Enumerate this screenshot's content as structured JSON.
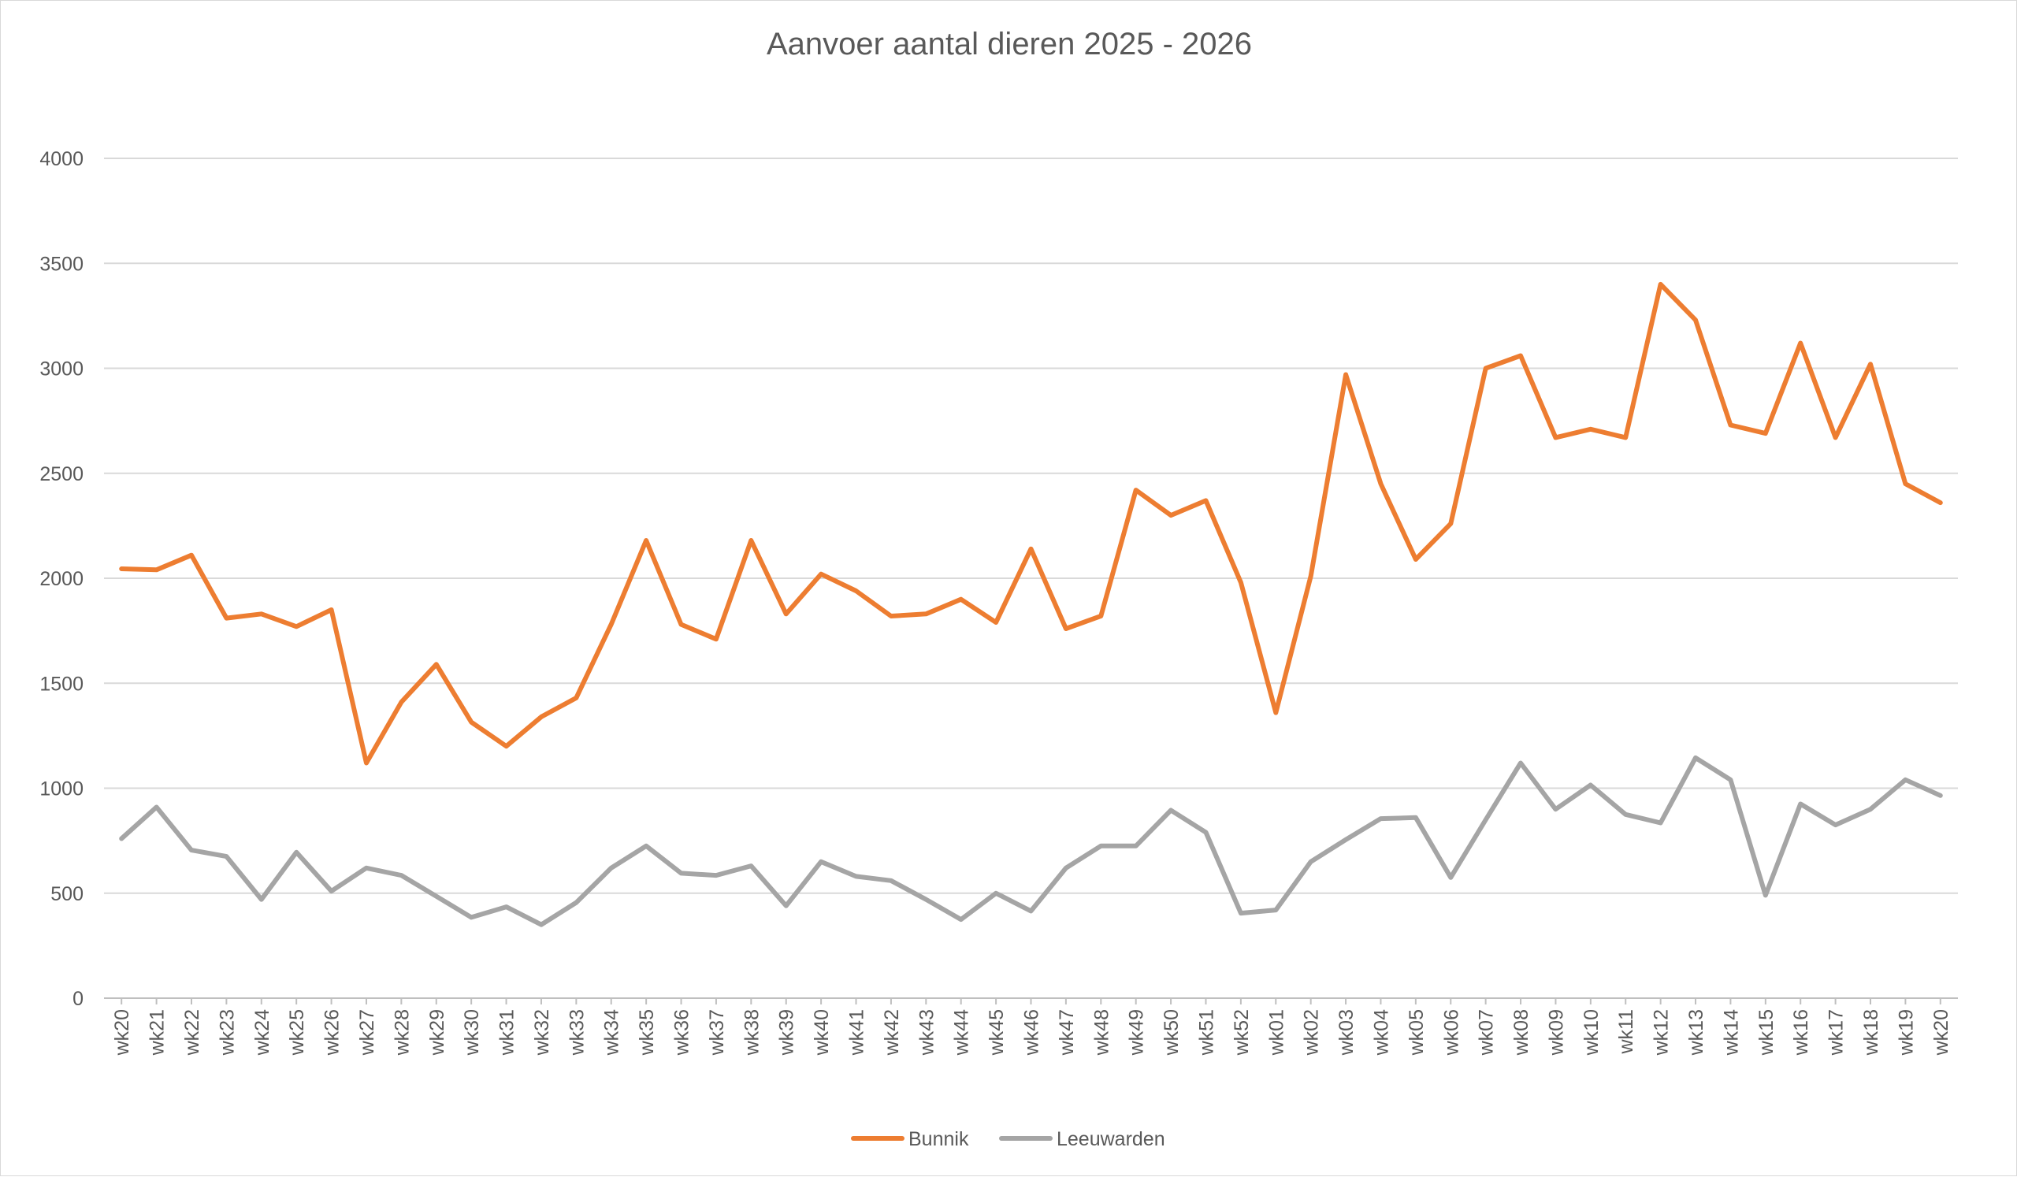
{
  "chart_data": {
    "type": "line",
    "title": "Aanvoer aantal dieren 2025 - 2026",
    "ylim": [
      0,
      4000
    ],
    "yticks": [
      "0",
      "500",
      "1000",
      "1500",
      "2000",
      "2500",
      "3000",
      "3500",
      "4000"
    ],
    "grid": true,
    "legend_position": "bottom",
    "categories": [
      "wk20",
      "wk21",
      "wk22",
      "wk23",
      "wk24",
      "wk25",
      "wk26",
      "wk27",
      "wk28",
      "wk29",
      "wk30",
      "wk31",
      "wk32",
      "wk33",
      "wk34",
      "wk35",
      "wk36",
      "wk37",
      "wk38",
      "wk39",
      "wk40",
      "wk41",
      "wk42",
      "wk43",
      "wk44",
      "wk45",
      "wk46",
      "wk47",
      "wk48",
      "wk49",
      "wk50",
      "wk51",
      "wk52",
      "wk01",
      "wk02",
      "wk03",
      "wk04",
      "wk05",
      "wk06",
      "wk07",
      "wk08",
      "wk09",
      "wk10",
      "wk11",
      "wk12",
      "wk13",
      "wk14",
      "wk15",
      "wk16",
      "wk17",
      "wk18",
      "wk19",
      "wk20"
    ],
    "series": [
      {
        "name": "Bunnik",
        "color": "#ED7D31",
        "values": [
          2045,
          2040,
          2110,
          1810,
          1830,
          1770,
          1850,
          1120,
          1410,
          1590,
          1315,
          1200,
          1340,
          1430,
          1780,
          2180,
          1780,
          1710,
          2180,
          1830,
          2020,
          1940,
          1820,
          1830,
          1900,
          1790,
          2140,
          1760,
          1820,
          2420,
          2300,
          2370,
          1980,
          1360,
          2010,
          2970,
          2450,
          2090,
          2260,
          3000,
          3060,
          2670,
          2710,
          2670,
          3400,
          3230,
          2730,
          2690,
          3120,
          2670,
          3020,
          2450,
          2360
        ]
      },
      {
        "name": "Leeuwarden",
        "color": "#A5A5A5",
        "values": [
          760,
          910,
          705,
          675,
          470,
          695,
          510,
          620,
          585,
          485,
          385,
          435,
          350,
          455,
          620,
          725,
          595,
          585,
          630,
          440,
          650,
          580,
          560,
          470,
          375,
          500,
          415,
          620,
          725,
          725,
          895,
          790,
          405,
          420,
          650,
          755,
          855,
          860,
          575,
          850,
          1120,
          900,
          1015,
          875,
          835,
          1145,
          1040,
          490,
          925,
          825,
          900,
          1040,
          965
        ]
      }
    ]
  }
}
